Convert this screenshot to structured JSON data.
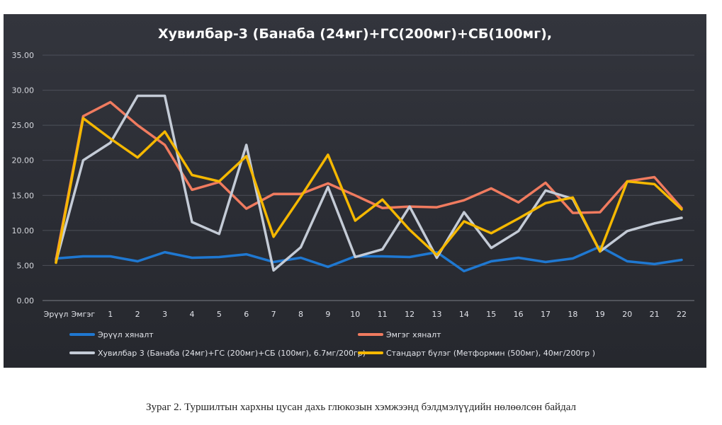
{
  "chart_data": {
    "type": "line",
    "title": "Хувилбар-3 (Банаба (24мг)+ГС(200мг)+СБ(100мг),",
    "xlabel": "",
    "ylabel": "",
    "ylim": [
      0,
      35
    ],
    "yticks": [
      "0.00",
      "5.00",
      "10.00",
      "15.00",
      "20.00",
      "25.00",
      "30.00",
      "35.00"
    ],
    "categories": [
      "Эрүүл",
      "Эмгэг",
      "1",
      "2",
      "3",
      "4",
      "5",
      "6",
      "7",
      "8",
      "9",
      "10",
      "11",
      "12",
      "13",
      "14",
      "15",
      "16",
      "17",
      "18",
      "19",
      "20",
      "21",
      "22"
    ],
    "grid": true,
    "legend_position": "bottom",
    "series": [
      {
        "name": "Эрүүл хяналт",
        "color": "#1f78d1",
        "values": [
          6.0,
          6.3,
          6.3,
          5.6,
          6.9,
          6.1,
          6.2,
          6.6,
          5.5,
          6.1,
          4.8,
          6.3,
          6.3,
          6.2,
          6.9,
          4.2,
          5.6,
          6.1,
          5.5,
          6.0,
          7.7,
          5.6,
          5.2,
          5.8
        ]
      },
      {
        "name": "Эмгэг хяналт",
        "color": "#f07b5f",
        "values": [
          5.8,
          26.3,
          28.3,
          25.0,
          22.2,
          15.8,
          16.9,
          13.1,
          15.2,
          15.2,
          16.7,
          15.0,
          13.2,
          13.4,
          13.3,
          14.3,
          16.0,
          14.0,
          16.8,
          12.5,
          12.6,
          17.0,
          17.6,
          13.2
        ]
      },
      {
        "name": "Хувилбар 3 (Банаба (24мг)+ГС (200мг)+СБ (100мг), 6.7мг/200гр)",
        "color": "#c4cbd6",
        "values": [
          5.5,
          20.0,
          22.5,
          29.2,
          29.2,
          11.2,
          9.5,
          22.2,
          4.3,
          7.6,
          16.2,
          6.2,
          7.3,
          13.4,
          6.1,
          12.6,
          7.5,
          9.9,
          15.7,
          14.5,
          7.0,
          9.9,
          11.0,
          11.8
        ]
      },
      {
        "name": "Стандарт бүлэг  (Метформин (500мг), 40мг/200гр )",
        "color": "#f5b800",
        "values": [
          5.4,
          26.0,
          23.1,
          20.4,
          24.1,
          17.9,
          17.0,
          20.6,
          9.1,
          14.8,
          20.8,
          11.4,
          14.4,
          10.1,
          6.5,
          11.3,
          9.6,
          11.7,
          13.9,
          14.7,
          7.0,
          17.0,
          16.6,
          13.0
        ]
      }
    ]
  },
  "caption": "Зураг 2. Туршилтын хархны цусан дахь глюкозын хэмжээнд бэлдмэлүүдийн нөлөөлсөн байдал"
}
